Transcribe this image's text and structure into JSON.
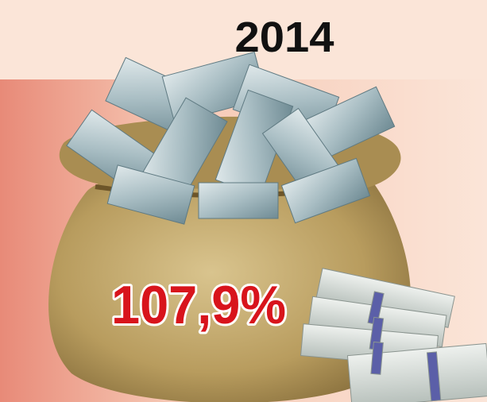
{
  "header": {
    "year": "2014"
  },
  "figure": {
    "value": "107,9%"
  }
}
